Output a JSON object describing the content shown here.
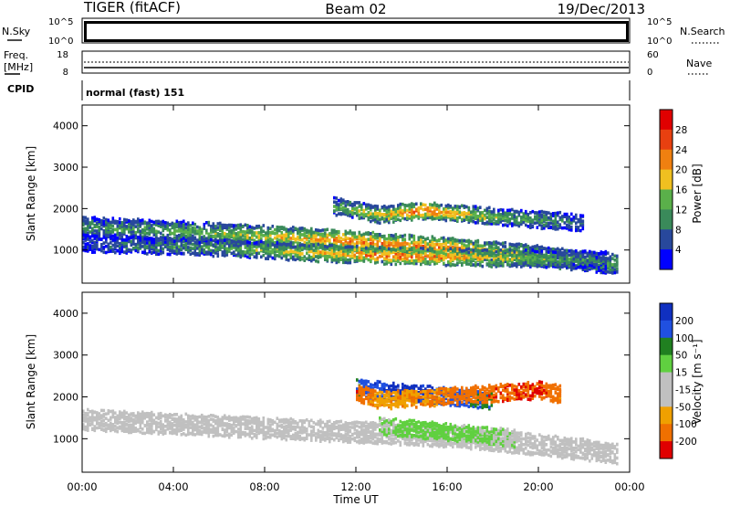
{
  "header": {
    "title": "TIGER (fitACF)",
    "beam": "Beam 02",
    "date": "19/Dec/2013"
  },
  "status_panels": {
    "nsky": {
      "left_label": "N.Sky",
      "left_ticks": [
        "10^5",
        "10^0"
      ],
      "right_label": "N.Search",
      "right_ticks": [
        "10^5",
        "10^0"
      ]
    },
    "freq": {
      "left_label_top": "Freq.",
      "left_label_bottom": "[MHz]",
      "left_ticks": [
        "18",
        "8"
      ],
      "right_label": "Nave",
      "right_ticks": [
        "60",
        "0"
      ]
    },
    "cpid": {
      "label": "CPID",
      "text": "normal (fast) 151"
    }
  },
  "colors": {
    "power_scale": [
      "#0000ff",
      "#28489c",
      "#3a8a5a",
      "#5ab04a",
      "#f0c020",
      "#f08010",
      "#e84010",
      "#e00000"
    ],
    "velocity_scale": [
      "#1030c0",
      "#2050e0",
      "#208020",
      "#60d040",
      "#c0c0c0",
      "#c0c0c0",
      "#f0a000",
      "#f07000",
      "#e00000"
    ],
    "ground_scatter": "#c0c0c0"
  },
  "chart_data": [
    {
      "type": "heatmap",
      "name": "power",
      "ylabel": "Slant Range [km]",
      "y_ticks": [
        "4000",
        "3000",
        "2000",
        "1000"
      ],
      "ylim": [
        200,
        4500
      ],
      "x_ticks": [
        "00:00",
        "04:00",
        "08:00",
        "12:00",
        "16:00",
        "20:00",
        "00:00"
      ],
      "xlim": [
        0,
        24
      ],
      "colorbar": {
        "label": "Power [dB]",
        "ticks": [
          "28",
          "24",
          "20",
          "16",
          "12",
          "8",
          "4"
        ],
        "range": [
          0,
          32
        ]
      },
      "bands": [
        {
          "t": [
            0,
            6,
            12,
            16,
            20,
            23.5
          ],
          "r": [
            1550,
            1400,
            1200,
            1050,
            850,
            650
          ],
          "p": [
            10,
            14,
            24,
            22,
            16,
            12
          ]
        },
        {
          "t": [
            0,
            6,
            11,
            14,
            18,
            23
          ],
          "r": [
            1150,
            1050,
            900,
            850,
            800,
            750
          ],
          "p": [
            6,
            12,
            20,
            26,
            18,
            8
          ]
        },
        {
          "t": [
            11,
            13,
            15,
            18,
            22
          ],
          "r": [
            2050,
            1850,
            1950,
            1800,
            1650
          ],
          "p": [
            12,
            18,
            26,
            14,
            8
          ]
        }
      ]
    },
    {
      "type": "heatmap",
      "name": "velocity",
      "ylabel": "Slant Range [km]",
      "y_ticks": [
        "4000",
        "3000",
        "2000",
        "1000"
      ],
      "ylim": [
        200,
        4500
      ],
      "x_ticks": [
        "00:00",
        "04:00",
        "08:00",
        "12:00",
        "16:00",
        "20:00",
        "00:00"
      ],
      "xlim": [
        0,
        24
      ],
      "xlabel": "Time UT",
      "colorbar": {
        "label": "Velocity [m s⁻¹]",
        "ticks": [
          "200",
          "100",
          "50",
          "15",
          "-15",
          "-50",
          "-100",
          "-200"
        ],
        "range": [
          -250,
          250
        ]
      },
      "bands": [
        {
          "t": [
            0,
            4,
            8,
            12,
            16,
            20,
            23.5
          ],
          "r": [
            1450,
            1350,
            1250,
            1150,
            1050,
            850,
            650
          ],
          "v": [
            0,
            0,
            0,
            0,
            0,
            0,
            0
          ]
        },
        {
          "t": [
            13,
            15,
            17,
            19
          ],
          "r": [
            1300,
            1200,
            1100,
            1000
          ],
          "v": [
            30,
            60,
            40,
            20
          ]
        },
        {
          "t": [
            12,
            14,
            16,
            18
          ],
          "r": [
            2200,
            2100,
            2000,
            1900
          ],
          "v": [
            150,
            220,
            180,
            120
          ]
        },
        {
          "t": [
            12,
            13,
            20,
            21
          ],
          "r": [
            2100,
            1900,
            2150,
            2050
          ],
          "v": [
            -180,
            -120,
            -200,
            -150
          ]
        }
      ]
    }
  ]
}
